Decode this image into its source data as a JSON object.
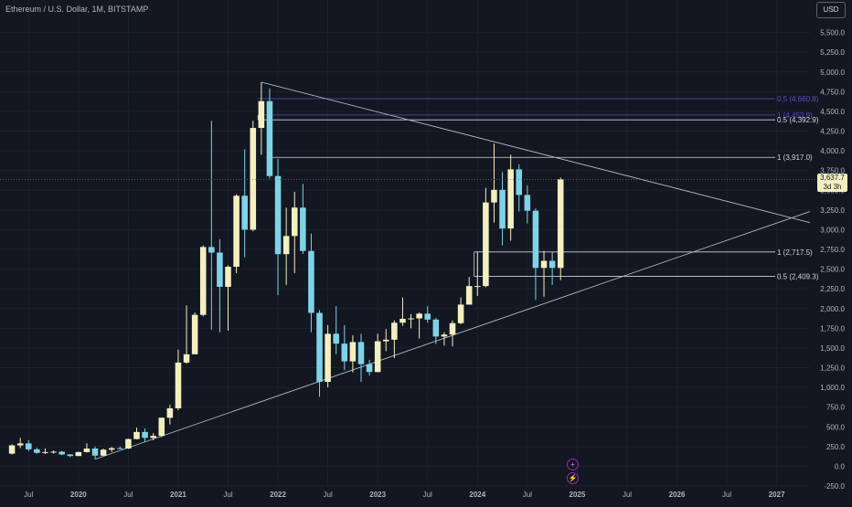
{
  "header": {
    "symbol_title": "Ethereum / U.S. Dollar, 1M, BITSTAMP",
    "currency_button": "USD"
  },
  "price_tag": {
    "price": "3,637.7",
    "countdown": "3d 3h"
  },
  "indicator_icons": [
    {
      "icon": "plus-circle-icon"
    },
    {
      "icon": "lightning-circle-icon"
    }
  ],
  "colors": {
    "background": "#131722",
    "up_candle": "#f3efbf",
    "down_candle": "#7fd3e6",
    "level_line": "#d1d4dc",
    "purple_level": "#5b4fc4",
    "trendline": "#b2b5be"
  },
  "chart_data": {
    "type": "candlestick",
    "title": "Ethereum / U.S. Dollar, 1M, BITSTAMP",
    "ylim": [
      -250,
      5750
    ],
    "y_ticks": [
      -250,
      0,
      250,
      500,
      750,
      1000,
      1250,
      1500,
      1750,
      2000,
      2250,
      2500,
      2750,
      3000,
      3250,
      3500,
      3750,
      4000,
      4250,
      4500,
      4750,
      5000,
      5250,
      5500
    ],
    "y_tick_labels": [
      "-250.0",
      "0.0",
      "250.0",
      "500.0",
      "750.0",
      "1,000.0",
      "1,250.0",
      "1,500.0",
      "1,750.0",
      "2,000.0",
      "2,250.0",
      "2,500.0",
      "2,750.0",
      "3,000.0",
      "3,250.0",
      "3,500.0",
      "3,750.0",
      "4,000.0",
      "4,250.0",
      "4,500.0",
      "4,750.0",
      "5,000.0",
      "5,250.0",
      "5,500.0"
    ],
    "x_range": [
      "2019-05",
      "2027-05"
    ],
    "x_ticks": [
      {
        "label": "Jul",
        "date": "2019-07"
      },
      {
        "label": "2020",
        "date": "2020-01"
      },
      {
        "label": "Jul",
        "date": "2020-07"
      },
      {
        "label": "2021",
        "date": "2021-01"
      },
      {
        "label": "Jul",
        "date": "2021-07"
      },
      {
        "label": "2022",
        "date": "2022-01"
      },
      {
        "label": "Jul",
        "date": "2022-07"
      },
      {
        "label": "2023",
        "date": "2023-01"
      },
      {
        "label": "Jul",
        "date": "2023-07"
      },
      {
        "label": "2024",
        "date": "2024-01"
      },
      {
        "label": "Jul",
        "date": "2024-07"
      },
      {
        "label": "2025",
        "date": "2025-01"
      },
      {
        "label": "Jul",
        "date": "2025-07"
      },
      {
        "label": "2026",
        "date": "2026-01"
      },
      {
        "label": "Jul",
        "date": "2026-07"
      },
      {
        "label": "2027",
        "date": "2027-01"
      }
    ],
    "candles": [
      {
        "date": "2019-05",
        "o": 160,
        "h": 280,
        "l": 150,
        "c": 265
      },
      {
        "date": "2019-06",
        "o": 265,
        "h": 360,
        "l": 230,
        "c": 290
      },
      {
        "date": "2019-07",
        "o": 290,
        "h": 330,
        "l": 190,
        "c": 215
      },
      {
        "date": "2019-08",
        "o": 215,
        "h": 235,
        "l": 160,
        "c": 170
      },
      {
        "date": "2019-09",
        "o": 170,
        "h": 225,
        "l": 155,
        "c": 180
      },
      {
        "date": "2019-10",
        "o": 180,
        "h": 200,
        "l": 160,
        "c": 185
      },
      {
        "date": "2019-11",
        "o": 185,
        "h": 195,
        "l": 140,
        "c": 150
      },
      {
        "date": "2019-12",
        "o": 150,
        "h": 155,
        "l": 115,
        "c": 130
      },
      {
        "date": "2020-01",
        "o": 130,
        "h": 185,
        "l": 128,
        "c": 180
      },
      {
        "date": "2020-02",
        "o": 180,
        "h": 290,
        "l": 175,
        "c": 225
      },
      {
        "date": "2020-03",
        "o": 225,
        "h": 250,
        "l": 90,
        "c": 135
      },
      {
        "date": "2020-04",
        "o": 135,
        "h": 225,
        "l": 130,
        "c": 210
      },
      {
        "date": "2020-05",
        "o": 210,
        "h": 245,
        "l": 180,
        "c": 230
      },
      {
        "date": "2020-06",
        "o": 230,
        "h": 250,
        "l": 215,
        "c": 225
      },
      {
        "date": "2020-07",
        "o": 225,
        "h": 350,
        "l": 220,
        "c": 345
      },
      {
        "date": "2020-08",
        "o": 345,
        "h": 490,
        "l": 340,
        "c": 435
      },
      {
        "date": "2020-09",
        "o": 435,
        "h": 480,
        "l": 310,
        "c": 360
      },
      {
        "date": "2020-10",
        "o": 360,
        "h": 420,
        "l": 330,
        "c": 385
      },
      {
        "date": "2020-11",
        "o": 385,
        "h": 620,
        "l": 370,
        "c": 615
      },
      {
        "date": "2020-12",
        "o": 615,
        "h": 780,
        "l": 530,
        "c": 735
      },
      {
        "date": "2021-01",
        "o": 735,
        "h": 1480,
        "l": 710,
        "c": 1315
      },
      {
        "date": "2021-02",
        "o": 1315,
        "h": 2040,
        "l": 1300,
        "c": 1420
      },
      {
        "date": "2021-03",
        "o": 1420,
        "h": 1950,
        "l": 1450,
        "c": 1920
      },
      {
        "date": "2021-04",
        "o": 1920,
        "h": 2800,
        "l": 1900,
        "c": 2780
      },
      {
        "date": "2021-05",
        "o": 2780,
        "h": 4380,
        "l": 1730,
        "c": 2710
      },
      {
        "date": "2021-06",
        "o": 2710,
        "h": 2880,
        "l": 1700,
        "c": 2275
      },
      {
        "date": "2021-07",
        "o": 2275,
        "h": 2550,
        "l": 1720,
        "c": 2530
      },
      {
        "date": "2021-08",
        "o": 2530,
        "h": 3450,
        "l": 2450,
        "c": 3430
      },
      {
        "date": "2021-09",
        "o": 3430,
        "h": 4020,
        "l": 2650,
        "c": 3000
      },
      {
        "date": "2021-10",
        "o": 3000,
        "h": 4380,
        "l": 2980,
        "c": 4290
      },
      {
        "date": "2021-11",
        "o": 4290,
        "h": 4870,
        "l": 3950,
        "c": 4630
      },
      {
        "date": "2021-12",
        "o": 4630,
        "h": 4790,
        "l": 3650,
        "c": 3680
      },
      {
        "date": "2022-01",
        "o": 3680,
        "h": 3900,
        "l": 2170,
        "c": 2690
      },
      {
        "date": "2022-02",
        "o": 2690,
        "h": 3280,
        "l": 2300,
        "c": 2920
      },
      {
        "date": "2022-03",
        "o": 2920,
        "h": 3480,
        "l": 2450,
        "c": 3280
      },
      {
        "date": "2022-04",
        "o": 3280,
        "h": 3580,
        "l": 2690,
        "c": 2730
      },
      {
        "date": "2022-05",
        "o": 2730,
        "h": 2950,
        "l": 1700,
        "c": 1945
      },
      {
        "date": "2022-06",
        "o": 1945,
        "h": 1980,
        "l": 880,
        "c": 1070
      },
      {
        "date": "2022-07",
        "o": 1070,
        "h": 1790,
        "l": 1000,
        "c": 1680
      },
      {
        "date": "2022-08",
        "o": 1680,
        "h": 2030,
        "l": 1420,
        "c": 1555
      },
      {
        "date": "2022-09",
        "o": 1555,
        "h": 1790,
        "l": 1220,
        "c": 1330
      },
      {
        "date": "2022-10",
        "o": 1330,
        "h": 1660,
        "l": 1190,
        "c": 1575
      },
      {
        "date": "2022-11",
        "o": 1575,
        "h": 1680,
        "l": 1070,
        "c": 1295
      },
      {
        "date": "2022-12",
        "o": 1295,
        "h": 1350,
        "l": 1150,
        "c": 1195
      },
      {
        "date": "2023-01",
        "o": 1195,
        "h": 1680,
        "l": 1190,
        "c": 1585
      },
      {
        "date": "2023-02",
        "o": 1585,
        "h": 1740,
        "l": 1460,
        "c": 1605
      },
      {
        "date": "2023-03",
        "o": 1605,
        "h": 1850,
        "l": 1370,
        "c": 1820
      },
      {
        "date": "2023-04",
        "o": 1820,
        "h": 2140,
        "l": 1780,
        "c": 1870
      },
      {
        "date": "2023-05",
        "o": 1870,
        "h": 1930,
        "l": 1750,
        "c": 1875
      },
      {
        "date": "2023-06",
        "o": 1875,
        "h": 1950,
        "l": 1620,
        "c": 1935
      },
      {
        "date": "2023-07",
        "o": 1935,
        "h": 2030,
        "l": 1820,
        "c": 1860
      },
      {
        "date": "2023-08",
        "o": 1860,
        "h": 1880,
        "l": 1550,
        "c": 1645
      },
      {
        "date": "2023-09",
        "o": 1645,
        "h": 1700,
        "l": 1530,
        "c": 1670
      },
      {
        "date": "2023-10",
        "o": 1670,
        "h": 1850,
        "l": 1520,
        "c": 1815
      },
      {
        "date": "2023-11",
        "o": 1815,
        "h": 2140,
        "l": 1800,
        "c": 2050
      },
      {
        "date": "2023-12",
        "o": 2050,
        "h": 2400,
        "l": 2050,
        "c": 2285
      },
      {
        "date": "2024-01",
        "o": 2285,
        "h": 2720,
        "l": 2160,
        "c": 2285
      },
      {
        "date": "2024-02",
        "o": 2285,
        "h": 3530,
        "l": 2270,
        "c": 3345
      },
      {
        "date": "2024-03",
        "o": 3345,
        "h": 4090,
        "l": 3090,
        "c": 3505
      },
      {
        "date": "2024-04",
        "o": 3505,
        "h": 3730,
        "l": 2800,
        "c": 3015
      },
      {
        "date": "2024-05",
        "o": 3015,
        "h": 3950,
        "l": 2860,
        "c": 3765
      },
      {
        "date": "2024-06",
        "o": 3765,
        "h": 3830,
        "l": 3230,
        "c": 3440
      },
      {
        "date": "2024-07",
        "o": 3440,
        "h": 3560,
        "l": 3080,
        "c": 3240
      },
      {
        "date": "2024-08",
        "o": 3240,
        "h": 3270,
        "l": 2110,
        "c": 2515
      },
      {
        "date": "2024-09",
        "o": 2515,
        "h": 2730,
        "l": 2150,
        "c": 2605
      },
      {
        "date": "2024-10",
        "o": 2605,
        "h": 2720,
        "l": 2300,
        "c": 2515
      },
      {
        "date": "2024-11",
        "o": 2515,
        "h": 3660,
        "l": 2360,
        "c": 3638
      }
    ],
    "current_price": 3637.7,
    "levels": [
      {
        "label": "0.5 (4,660.8)",
        "value": 4660.8,
        "from": "2021-11",
        "color": "purple"
      },
      {
        "label": "1 (4,453.9)",
        "value": 4453.9,
        "from": "2021-11",
        "color": "purple"
      },
      {
        "label": "0.5 (4,392.9)",
        "value": 4392.9,
        "from": "2021-11",
        "color": "white"
      },
      {
        "label": "1 (3,917.0)",
        "value": 3917.0,
        "from": "2021-12",
        "color": "white"
      },
      {
        "label": "1 (2,717.5)",
        "value": 2717.5,
        "from": "2024-01",
        "color": "white"
      },
      {
        "label": "0.5 (2,409.3)",
        "value": 2409.3,
        "from": "2024-01",
        "color": "white"
      }
    ],
    "trendlines": [
      {
        "from": {
          "date": "2021-11",
          "value": 4870
        },
        "to": {
          "date": "2027-05",
          "value": 3090
        }
      },
      {
        "from": {
          "date": "2020-03",
          "value": 90
        },
        "to": {
          "date": "2027-05",
          "value": 3230
        }
      }
    ]
  }
}
